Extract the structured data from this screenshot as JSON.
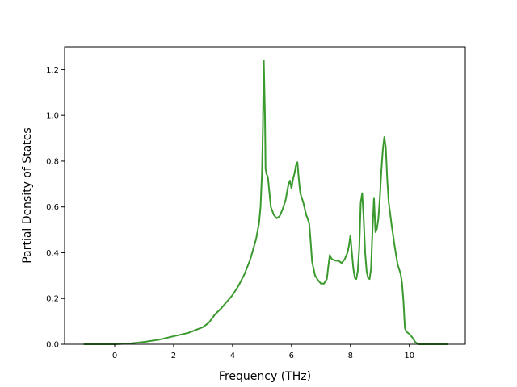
{
  "chart_data": {
    "type": "line",
    "title": "",
    "xlabel": "Frequency (THz)",
    "ylabel": "Partial Density of States",
    "xlim": [
      -1.7,
      11.9
    ],
    "ylim": [
      0.0,
      1.3
    ],
    "xticks": [
      0,
      2,
      4,
      6,
      8,
      10
    ],
    "yticks": [
      0.0,
      0.2,
      0.4,
      0.6,
      0.8,
      1.0,
      1.2
    ],
    "xtick_labels": [
      "0",
      "2",
      "4",
      "6",
      "8",
      "10"
    ],
    "ytick_labels": [
      "0.0",
      "0.2",
      "0.4",
      "0.6",
      "0.8",
      "1.0",
      "1.2"
    ],
    "grid": false,
    "legend": "none",
    "series": [
      {
        "color": "#3a9a2e",
        "x": [
          -1.05,
          -0.5,
          0.0,
          0.5,
          1.0,
          1.5,
          2.0,
          2.5,
          3.0,
          3.2,
          3.4,
          3.6,
          3.8,
          4.0,
          4.2,
          4.4,
          4.6,
          4.8,
          4.9,
          4.95,
          5.0,
          5.03,
          5.06,
          5.1,
          5.12,
          5.15,
          5.2,
          5.3,
          5.4,
          5.5,
          5.6,
          5.7,
          5.8,
          5.9,
          5.95,
          6.0,
          6.05,
          6.1,
          6.15,
          6.2,
          6.25,
          6.3,
          6.4,
          6.5,
          6.6,
          6.65,
          6.7,
          6.8,
          6.9,
          7.0,
          7.1,
          7.2,
          7.25,
          7.3,
          7.35,
          7.4,
          7.5,
          7.6,
          7.7,
          7.8,
          7.9,
          7.95,
          8.0,
          8.05,
          8.1,
          8.15,
          8.2,
          8.25,
          8.3,
          8.35,
          8.4,
          8.45,
          8.5,
          8.55,
          8.6,
          8.65,
          8.7,
          8.75,
          8.8,
          8.85,
          8.9,
          8.95,
          9.0,
          9.05,
          9.1,
          9.15,
          9.2,
          9.25,
          9.3,
          9.4,
          9.5,
          9.6,
          9.7,
          9.75,
          9.8,
          9.85,
          9.9,
          10.0,
          10.1,
          10.2,
          10.3,
          10.4,
          10.6,
          11.3
        ],
        "y": [
          0.0,
          0.0,
          0.0,
          0.003,
          0.01,
          0.02,
          0.035,
          0.05,
          0.075,
          0.095,
          0.13,
          0.155,
          0.185,
          0.215,
          0.255,
          0.305,
          0.37,
          0.46,
          0.53,
          0.6,
          0.75,
          0.95,
          1.24,
          1.0,
          0.77,
          0.745,
          0.73,
          0.6,
          0.565,
          0.55,
          0.56,
          0.59,
          0.63,
          0.7,
          0.715,
          0.68,
          0.72,
          0.745,
          0.78,
          0.795,
          0.72,
          0.66,
          0.62,
          0.565,
          0.53,
          0.45,
          0.36,
          0.3,
          0.28,
          0.265,
          0.265,
          0.285,
          0.34,
          0.39,
          0.375,
          0.37,
          0.365,
          0.365,
          0.355,
          0.37,
          0.4,
          0.43,
          0.475,
          0.4,
          0.33,
          0.29,
          0.285,
          0.32,
          0.42,
          0.62,
          0.66,
          0.55,
          0.4,
          0.32,
          0.29,
          0.285,
          0.33,
          0.5,
          0.64,
          0.49,
          0.505,
          0.55,
          0.64,
          0.76,
          0.85,
          0.905,
          0.86,
          0.72,
          0.62,
          0.52,
          0.43,
          0.35,
          0.31,
          0.27,
          0.19,
          0.07,
          0.055,
          0.045,
          0.03,
          0.01,
          0.0,
          0.0,
          0.0,
          0.0
        ]
      }
    ]
  }
}
